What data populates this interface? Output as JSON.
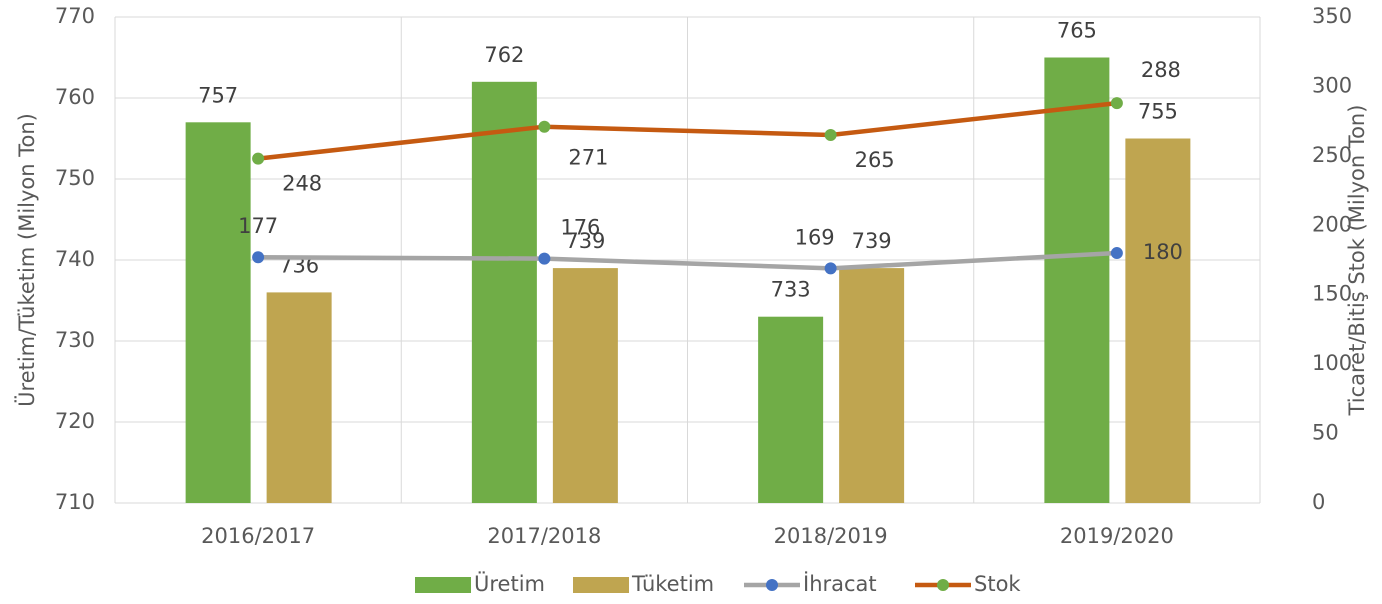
{
  "chart_data": {
    "type": "bar",
    "categories": [
      "2016/2017",
      "2017/2018",
      "2018/2019",
      "2019/2020"
    ],
    "series": [
      {
        "name": "Üretim",
        "type": "bar",
        "color": "#70ad47",
        "values": [
          757,
          762,
          733,
          765
        ]
      },
      {
        "name": "Tüketim",
        "type": "bar",
        "color": "#bfa550",
        "values": [
          736,
          739,
          739,
          755
        ]
      },
      {
        "name": "İhracat",
        "type": "line",
        "axis": "y2",
        "color": "#a5a5a5",
        "marker_color": "#4472c4",
        "values": [
          177,
          176,
          169,
          180
        ]
      },
      {
        "name": "Stok",
        "type": "line",
        "axis": "y2",
        "color": "#c55a11",
        "marker_color": "#70ad47",
        "values": [
          248,
          271,
          265,
          288
        ]
      }
    ],
    "ylabel": "Üretim/Tüketim (Milyon Ton)",
    "y2label": "Ticaret/Bitiş Stok (Milyon Ton)",
    "ylim": [
      710,
      770
    ],
    "yticks": [
      710,
      720,
      730,
      740,
      750,
      760,
      770
    ],
    "y2lim": [
      0,
      350
    ],
    "y2ticks": [
      0,
      50,
      100,
      150,
      200,
      250,
      300,
      350
    ],
    "grid": true,
    "legend": "bottom"
  }
}
